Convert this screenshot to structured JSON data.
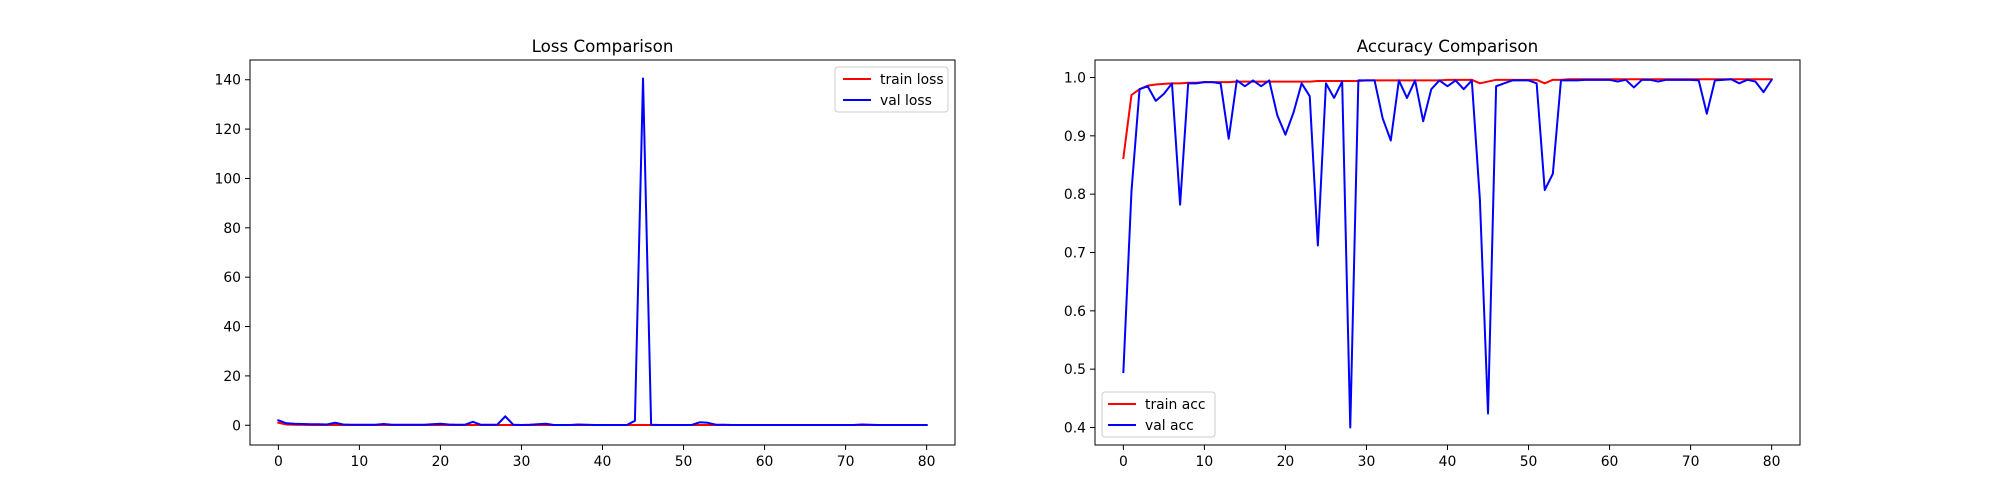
{
  "chart_data": [
    {
      "type": "line",
      "title": "Loss Comparison",
      "xlabel": "",
      "ylabel": "",
      "xlim": [
        -3.5,
        83.5
      ],
      "ylim": [
        -8,
        148
      ],
      "xticks": [
        0,
        10,
        20,
        30,
        40,
        50,
        60,
        70,
        80
      ],
      "yticks": [
        0,
        20,
        40,
        60,
        80,
        100,
        120,
        140
      ],
      "grid": false,
      "legend_position": "upper right",
      "series": [
        {
          "name": "train loss",
          "color": "#ff0000",
          "values": [
            1.0,
            0.3,
            0.2,
            0.15,
            0.12,
            0.1,
            0.1,
            0.1,
            0.1,
            0.1,
            0.1,
            0.1,
            0.1,
            0.1,
            0.1,
            0.1,
            0.1,
            0.1,
            0.1,
            0.1,
            0.1,
            0.1,
            0.1,
            0.1,
            0.1,
            0.1,
            0.1,
            0.1,
            0.1,
            0.1,
            0.1,
            0.1,
            0.1,
            0.1,
            0.1,
            0.1,
            0.1,
            0.1,
            0.1,
            0.1,
            0.1,
            0.1,
            0.1,
            0.1,
            0.1,
            0.1,
            0.1,
            0.1,
            0.1,
            0.1,
            0.1,
            0.1,
            0.1,
            0.1,
            0.1,
            0.1,
            0.1,
            0.1,
            0.1,
            0.1,
            0.1,
            0.1,
            0.1,
            0.1,
            0.1,
            0.1,
            0.1,
            0.1,
            0.1,
            0.1,
            0.1,
            0.1,
            0.1,
            0.1,
            0.1,
            0.1,
            0.1,
            0.1,
            0.1,
            0.1,
            0.1
          ]
        },
        {
          "name": "val loss",
          "color": "#0000ff",
          "values": [
            2.0,
            0.8,
            0.6,
            0.5,
            0.4,
            0.4,
            0.3,
            1.0,
            0.3,
            0.2,
            0.2,
            0.2,
            0.2,
            0.5,
            0.2,
            0.2,
            0.2,
            0.2,
            0.2,
            0.4,
            0.6,
            0.3,
            0.2,
            0.2,
            1.4,
            0.2,
            0.2,
            0.2,
            3.6,
            0.2,
            0.1,
            0.2,
            0.4,
            0.6,
            0.1,
            0.1,
            0.1,
            0.3,
            0.2,
            0.1,
            0.1,
            0.1,
            0.1,
            0.1,
            1.8,
            140.5,
            0.2,
            0.1,
            0.1,
            0.1,
            0.1,
            0.1,
            1.2,
            1.0,
            0.2,
            0.2,
            0.1,
            0.1,
            0.1,
            0.1,
            0.1,
            0.1,
            0.1,
            0.1,
            0.1,
            0.1,
            0.1,
            0.1,
            0.1,
            0.1,
            0.1,
            0.1,
            0.3,
            0.2,
            0.1,
            0.1,
            0.1,
            0.1,
            0.1,
            0.1,
            0.1
          ]
        }
      ]
    },
    {
      "type": "line",
      "title": "Accuracy Comparison",
      "xlabel": "",
      "ylabel": "",
      "xlim": [
        -3.5,
        83.5
      ],
      "ylim": [
        0.37,
        1.03
      ],
      "xticks": [
        0,
        10,
        20,
        30,
        40,
        50,
        60,
        70,
        80
      ],
      "yticks": [
        0.4,
        0.5,
        0.6,
        0.7,
        0.8,
        0.9,
        1.0
      ],
      "grid": false,
      "legend_position": "lower left",
      "series": [
        {
          "name": "train acc",
          "color": "#ff0000",
          "values": [
            0.862,
            0.97,
            0.98,
            0.986,
            0.988,
            0.989,
            0.99,
            0.99,
            0.991,
            0.991,
            0.992,
            0.992,
            0.992,
            0.992,
            0.993,
            0.993,
            0.993,
            0.993,
            0.993,
            0.993,
            0.993,
            0.993,
            0.993,
            0.993,
            0.994,
            0.994,
            0.994,
            0.994,
            0.994,
            0.994,
            0.995,
            0.995,
            0.995,
            0.995,
            0.995,
            0.995,
            0.995,
            0.995,
            0.995,
            0.995,
            0.996,
            0.996,
            0.996,
            0.996,
            0.99,
            0.993,
            0.996,
            0.996,
            0.996,
            0.996,
            0.996,
            0.996,
            0.99,
            0.996,
            0.996,
            0.997,
            0.997,
            0.997,
            0.997,
            0.997,
            0.997,
            0.997,
            0.997,
            0.997,
            0.997,
            0.997,
            0.997,
            0.997,
            0.997,
            0.997,
            0.997,
            0.997,
            0.997,
            0.997,
            0.997,
            0.997,
            0.997,
            0.997,
            0.997,
            0.997,
            0.997
          ]
        },
        {
          "name": "val acc",
          "color": "#0000ff",
          "values": [
            0.495,
            0.805,
            0.98,
            0.985,
            0.96,
            0.972,
            0.99,
            0.782,
            0.99,
            0.99,
            0.992,
            0.992,
            0.99,
            0.895,
            0.995,
            0.985,
            0.995,
            0.985,
            0.995,
            0.935,
            0.902,
            0.94,
            0.99,
            0.968,
            0.712,
            0.99,
            0.965,
            0.993,
            0.4,
            0.995,
            0.995,
            0.995,
            0.93,
            0.892,
            0.995,
            0.965,
            0.995,
            0.925,
            0.98,
            0.995,
            0.985,
            0.995,
            0.98,
            0.995,
            0.79,
            0.424,
            0.985,
            0.99,
            0.995,
            0.995,
            0.995,
            0.99,
            0.807,
            0.835,
            0.995,
            0.995,
            0.995,
            0.996,
            0.996,
            0.996,
            0.996,
            0.993,
            0.996,
            0.983,
            0.996,
            0.996,
            0.993,
            0.996,
            0.996,
            0.996,
            0.996,
            0.995,
            0.938,
            0.995,
            0.996,
            0.997,
            0.99,
            0.996,
            0.993,
            0.975,
            0.996
          ]
        }
      ]
    }
  ]
}
